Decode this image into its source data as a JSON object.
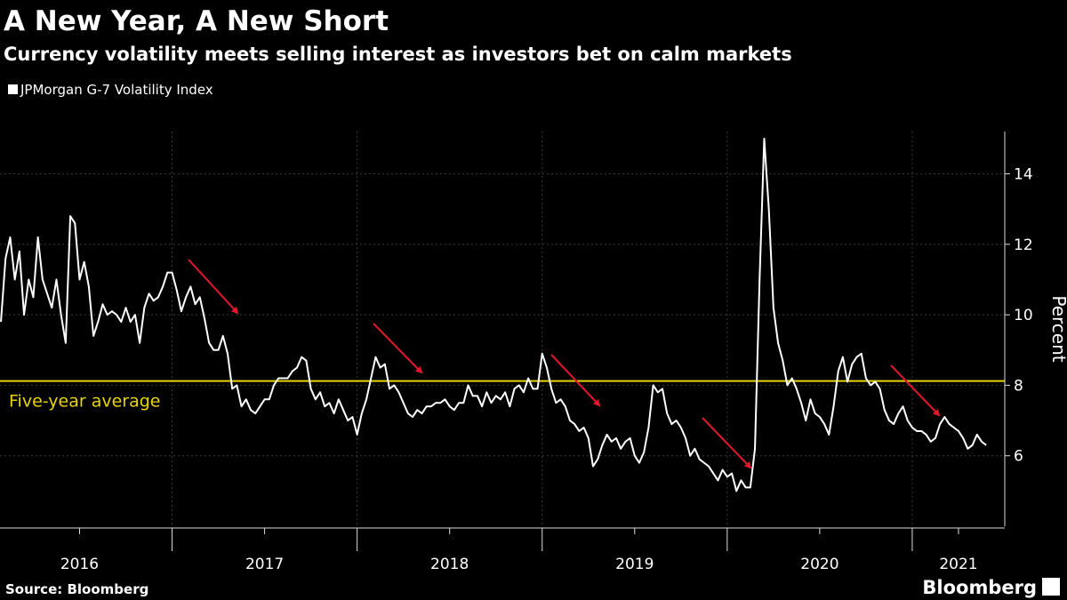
{
  "chart_data": {
    "type": "line",
    "title": "A New Year, A New Short",
    "subtitle": "Currency volatility meets selling interest as investors bet on calm markets",
    "ylabel": "Percent",
    "source": "Source: Bloomberg",
    "logo": "Bloomberg",
    "xlim": [
      2016.07,
      2021.5
    ],
    "xticks": [
      {
        "value": 2016.5,
        "label": "2016"
      },
      {
        "value": 2017.5,
        "label": "2017"
      },
      {
        "value": 2018.5,
        "label": "2018"
      },
      {
        "value": 2019.5,
        "label": "2019"
      },
      {
        "value": 2020.5,
        "label": "2020"
      },
      {
        "value": 2021.25,
        "label": "2021"
      }
    ],
    "xgrid": [
      2017,
      2018,
      2019,
      2020,
      2021
    ],
    "ylim": [
      4,
      15.2
    ],
    "yticks": [
      6,
      8,
      10,
      12,
      14
    ],
    "grid": true,
    "reference_line": {
      "value": 8.12,
      "label": "Five-year average",
      "color": "#e8d400"
    },
    "x": [
      2016.075,
      2016.1,
      2016.125,
      2016.15,
      2016.175,
      2016.2,
      2016.225,
      2016.25,
      2016.275,
      2016.3,
      2016.325,
      2016.35,
      2016.375,
      2016.4,
      2016.425,
      2016.45,
      2016.475,
      2016.5,
      2016.525,
      2016.55,
      2016.575,
      2016.6,
      2016.625,
      2016.65,
      2016.675,
      2016.7,
      2016.725,
      2016.75,
      2016.775,
      2016.8,
      2016.825,
      2016.85,
      2016.875,
      2016.9,
      2016.925,
      2016.95,
      2016.975,
      2017.0,
      2017.025,
      2017.05,
      2017.075,
      2017.1,
      2017.125,
      2017.15,
      2017.175,
      2017.2,
      2017.225,
      2017.25,
      2017.275,
      2017.3,
      2017.325,
      2017.35,
      2017.375,
      2017.4,
      2017.425,
      2017.45,
      2017.475,
      2017.5,
      2017.525,
      2017.55,
      2017.575,
      2017.6,
      2017.625,
      2017.65,
      2017.675,
      2017.7,
      2017.725,
      2017.75,
      2017.775,
      2017.8,
      2017.825,
      2017.85,
      2017.875,
      2017.9,
      2017.925,
      2017.95,
      2017.975,
      2018.0,
      2018.025,
      2018.05,
      2018.075,
      2018.1,
      2018.125,
      2018.15,
      2018.175,
      2018.2,
      2018.225,
      2018.25,
      2018.275,
      2018.3,
      2018.325,
      2018.35,
      2018.375,
      2018.4,
      2018.425,
      2018.45,
      2018.475,
      2018.5,
      2018.525,
      2018.55,
      2018.575,
      2018.6,
      2018.625,
      2018.65,
      2018.675,
      2018.7,
      2018.725,
      2018.75,
      2018.775,
      2018.8,
      2018.825,
      2018.85,
      2018.875,
      2018.9,
      2018.925,
      2018.95,
      2018.975,
      2019.0,
      2019.025,
      2019.05,
      2019.075,
      2019.1,
      2019.125,
      2019.15,
      2019.175,
      2019.2,
      2019.225,
      2019.25,
      2019.275,
      2019.3,
      2019.325,
      2019.35,
      2019.375,
      2019.4,
      2019.425,
      2019.45,
      2019.475,
      2019.5,
      2019.525,
      2019.55,
      2019.575,
      2019.6,
      2019.625,
      2019.65,
      2019.675,
      2019.7,
      2019.725,
      2019.75,
      2019.775,
      2019.8,
      2019.825,
      2019.85,
      2019.875,
      2019.9,
      2019.925,
      2019.95,
      2019.975,
      2020.0,
      2020.025,
      2020.05,
      2020.075,
      2020.1,
      2020.125,
      2020.15,
      2020.175,
      2020.2,
      2020.225,
      2020.25,
      2020.275,
      2020.3,
      2020.325,
      2020.35,
      2020.375,
      2020.4,
      2020.425,
      2020.45,
      2020.475,
      2020.5,
      2020.525,
      2020.55,
      2020.575,
      2020.6,
      2020.625,
      2020.65,
      2020.675,
      2020.7,
      2020.725,
      2020.75,
      2020.775,
      2020.8,
      2020.825,
      2020.85,
      2020.875,
      2020.9,
      2020.925,
      2020.95,
      2020.975,
      2021.0,
      2021.025,
      2021.05,
      2021.075,
      2021.1,
      2021.125,
      2021.15,
      2021.175,
      2021.2,
      2021.225,
      2021.25,
      2021.275,
      2021.3,
      2021.325,
      2021.35,
      2021.375,
      2021.4
    ],
    "series": [
      {
        "name": "JPMorgan G-7 Volatility Index",
        "color": "#ffffff",
        "values": [
          9.8,
          11.6,
          12.2,
          11.0,
          11.8,
          10.0,
          11.0,
          10.5,
          12.2,
          11.0,
          10.6,
          10.2,
          11.0,
          10.0,
          9.2,
          12.8,
          12.6,
          11.0,
          11.5,
          10.8,
          9.4,
          9.8,
          10.3,
          10.0,
          10.1,
          10.0,
          9.8,
          10.2,
          9.8,
          10.0,
          9.2,
          10.2,
          10.6,
          10.4,
          10.5,
          10.8,
          11.2,
          11.2,
          10.7,
          10.1,
          10.5,
          10.8,
          10.3,
          10.5,
          9.9,
          9.2,
          9.0,
          9.0,
          9.4,
          8.9,
          7.9,
          8.0,
          7.4,
          7.6,
          7.3,
          7.2,
          7.4,
          7.6,
          7.6,
          8.0,
          8.2,
          8.2,
          8.2,
          8.4,
          8.5,
          8.8,
          8.7,
          7.9,
          7.6,
          7.8,
          7.4,
          7.5,
          7.2,
          7.6,
          7.3,
          7.0,
          7.1,
          6.6,
          7.2,
          7.6,
          8.2,
          8.8,
          8.5,
          8.6,
          7.9,
          8.0,
          7.8,
          7.5,
          7.2,
          7.1,
          7.3,
          7.2,
          7.4,
          7.4,
          7.5,
          7.5,
          7.6,
          7.4,
          7.3,
          7.5,
          7.5,
          8.0,
          7.7,
          7.7,
          7.4,
          7.8,
          7.5,
          7.7,
          7.6,
          7.8,
          7.4,
          7.9,
          8.0,
          7.8,
          8.2,
          7.9,
          7.9,
          8.9,
          8.5,
          7.9,
          7.5,
          7.6,
          7.4,
          7.0,
          6.9,
          6.7,
          6.8,
          6.5,
          5.7,
          5.9,
          6.3,
          6.6,
          6.4,
          6.5,
          6.2,
          6.4,
          6.5,
          6.0,
          5.8,
          6.1,
          6.8,
          8.0,
          7.8,
          7.9,
          7.2,
          6.9,
          7.0,
          6.8,
          6.5,
          6.0,
          6.2,
          5.9,
          5.8,
          5.7,
          5.5,
          5.3,
          5.6,
          5.4,
          5.5,
          5.0,
          5.3,
          5.1,
          5.1,
          6.2,
          11.0,
          15.0,
          13.0,
          10.2,
          9.2,
          8.7,
          8.0,
          8.2,
          7.9,
          7.5,
          7.0,
          7.6,
          7.2,
          7.1,
          6.9,
          6.6,
          7.4,
          8.4,
          8.8,
          8.1,
          8.6,
          8.8,
          8.9,
          8.2,
          8.0,
          8.1,
          7.9,
          7.3,
          7.0,
          6.9,
          7.2,
          7.4,
          7.0,
          6.8,
          6.7,
          6.7,
          6.6,
          6.4,
          6.5,
          6.9,
          7.1,
          6.9,
          6.8,
          6.7,
          6.5,
          6.2,
          6.3,
          6.6,
          6.4,
          6.3
        ]
      }
    ]
  }
}
